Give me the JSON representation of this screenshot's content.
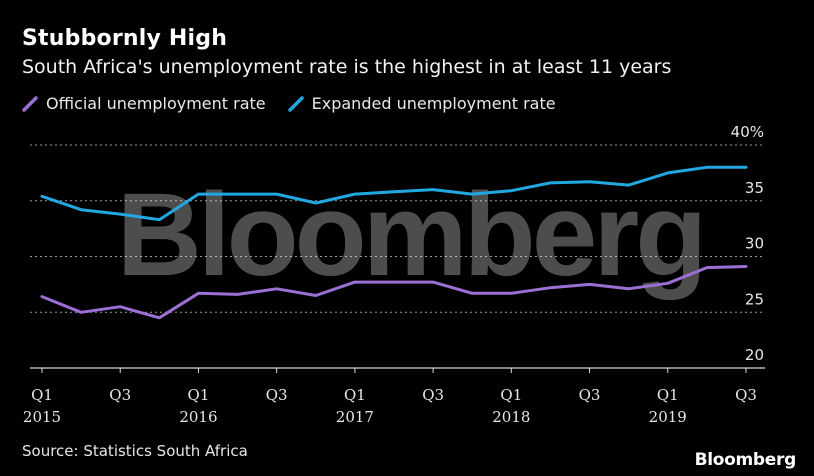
{
  "header": {
    "title": "Stubbornly High",
    "subtitle": "South Africa's unemployment rate is the highest in at least 11 years"
  },
  "legend": [
    {
      "label": "Official unemployment rate",
      "color": "#9b6fd3"
    },
    {
      "label": "Expanded unemployment rate",
      "color": "#22a8e0"
    }
  ],
  "footer": {
    "source": "Source: Statistics South Africa",
    "brand": "Bloomberg"
  },
  "watermark": "Bloomberg",
  "chart_data": {
    "type": "line",
    "title": "Stubbornly High",
    "subtitle": "South Africa's unemployment rate is the highest in at least 11 years",
    "x": [
      "2015 Q1",
      "2015 Q2",
      "2015 Q3",
      "2015 Q4",
      "2016 Q1",
      "2016 Q2",
      "2016 Q3",
      "2016 Q4",
      "2017 Q1",
      "2017 Q2",
      "2017 Q3",
      "2017 Q4",
      "2018 Q1",
      "2018 Q2",
      "2018 Q3",
      "2018 Q4",
      "2019 Q1",
      "2019 Q2",
      "2019 Q3"
    ],
    "x_ticks": [
      {
        "index": 0,
        "q": "Q1",
        "year": "2015"
      },
      {
        "index": 2,
        "q": "Q3",
        "year": ""
      },
      {
        "index": 4,
        "q": "Q1",
        "year": "2016"
      },
      {
        "index": 6,
        "q": "Q3",
        "year": ""
      },
      {
        "index": 8,
        "q": "Q1",
        "year": "2017"
      },
      {
        "index": 10,
        "q": "Q3",
        "year": ""
      },
      {
        "index": 12,
        "q": "Q1",
        "year": "2018"
      },
      {
        "index": 14,
        "q": "Q3",
        "year": ""
      },
      {
        "index": 16,
        "q": "Q1",
        "year": "2019"
      },
      {
        "index": 18,
        "q": "Q3",
        "year": ""
      }
    ],
    "y_ticks": [
      {
        "value": 40,
        "label": "40%"
      },
      {
        "value": 35,
        "label": "35"
      },
      {
        "value": 30,
        "label": "30"
      },
      {
        "value": 25,
        "label": "25"
      },
      {
        "value": 20,
        "label": "20"
      }
    ],
    "ylim": [
      20,
      40
    ],
    "y_axis_side": "right",
    "grid": "dotted horizontal",
    "legend_position": "top-left",
    "series": [
      {
        "name": "Official unemployment rate",
        "color": "#9b6fd3",
        "values": [
          26.4,
          25.0,
          25.5,
          24.5,
          26.7,
          26.6,
          27.1,
          26.5,
          27.7,
          27.7,
          27.7,
          26.7,
          26.7,
          27.2,
          27.5,
          27.1,
          27.6,
          29.0,
          29.1
        ]
      },
      {
        "name": "Expanded unemployment rate",
        "color": "#22a8e0",
        "values": [
          35.4,
          34.2,
          33.8,
          33.3,
          35.6,
          35.6,
          35.6,
          34.8,
          35.6,
          35.8,
          36.0,
          35.6,
          35.9,
          36.6,
          36.7,
          36.4,
          37.5,
          38.0,
          38.0
        ]
      }
    ]
  }
}
